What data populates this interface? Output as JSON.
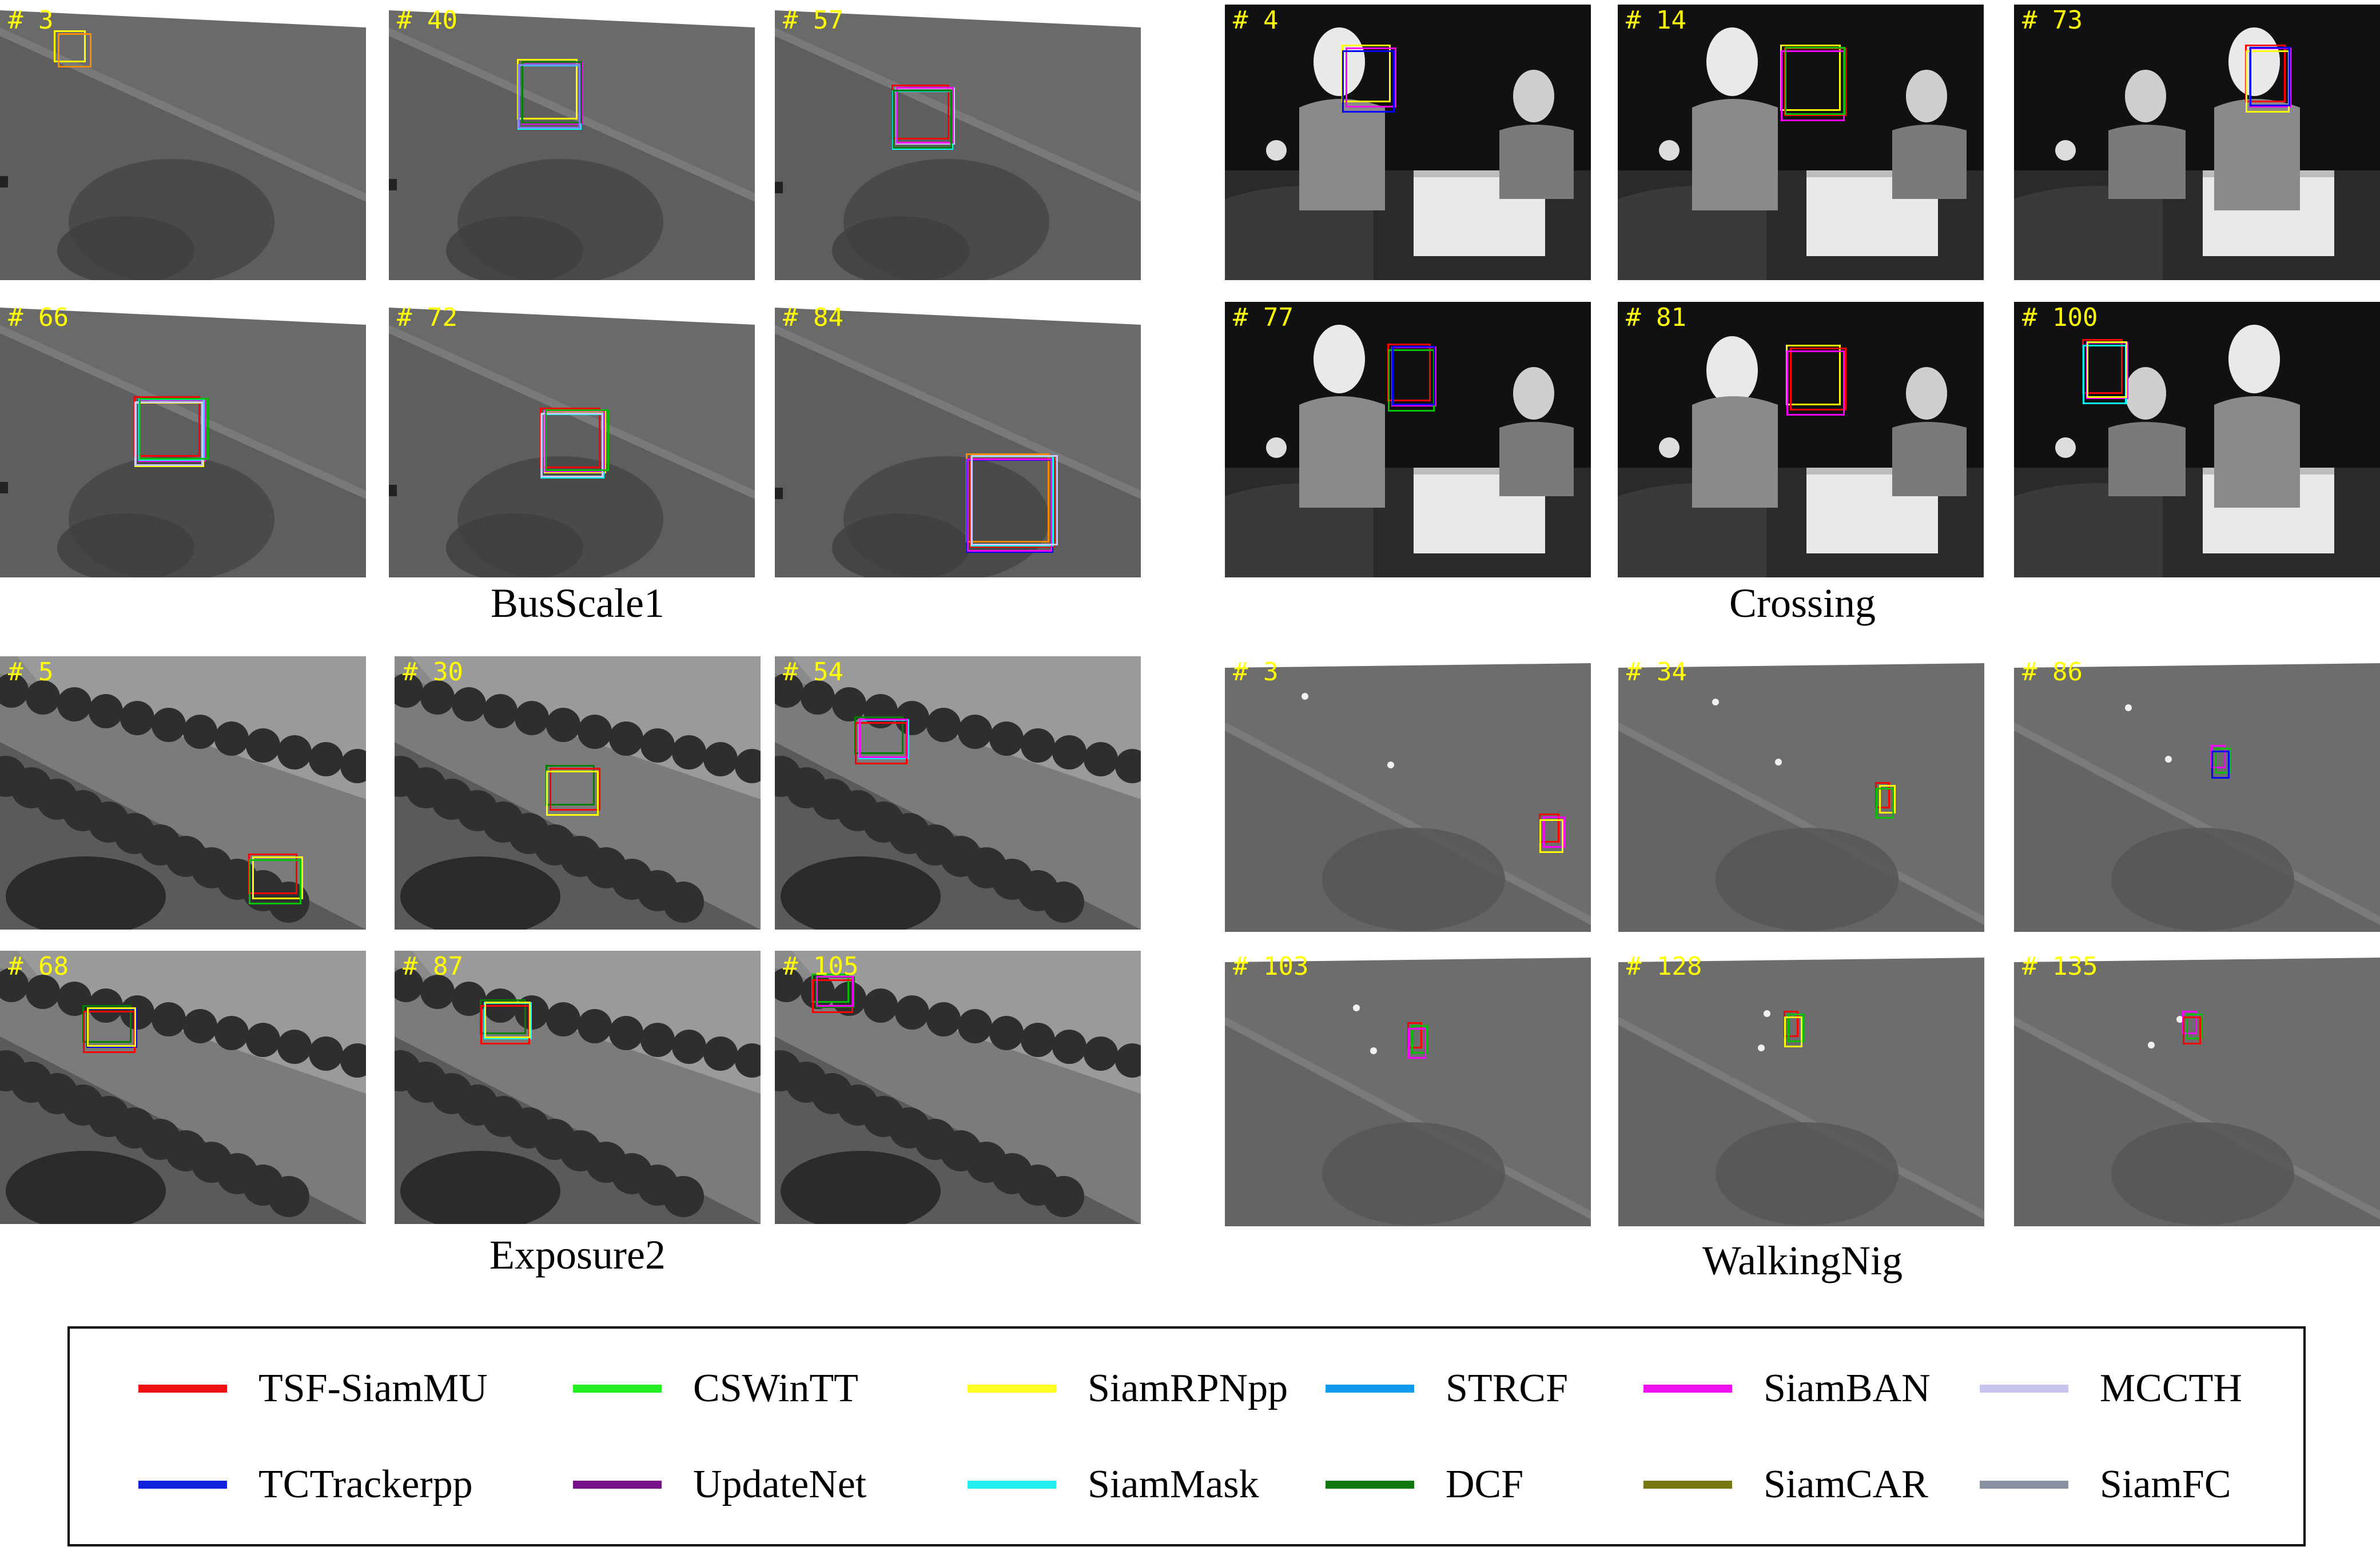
{
  "groups": [
    {
      "caption": "BusScale1",
      "scene": "road",
      "frames": [
        {
          "num": "# 3",
          "boxes": [
            {
              "c": "#ffff00",
              "o": 0.9
            },
            {
              "c": "#ff8c00",
              "o": 0.8
            }
          ]
        },
        {
          "num": "# 40",
          "boxes": [
            {
              "c": "#ffff00"
            },
            {
              "c": "#ff00ff"
            },
            {
              "c": "#00ffff"
            },
            {
              "c": "#008000"
            },
            {
              "c": "#7f7fff"
            }
          ]
        },
        {
          "num": "# 57",
          "boxes": [
            {
              "c": "#ff0000"
            },
            {
              "c": "#c8c8ff"
            },
            {
              "c": "#00ffff"
            },
            {
              "c": "#ff00ff"
            },
            {
              "c": "#008000"
            }
          ]
        },
        {
          "num": "# 66",
          "boxes": [
            {
              "c": "#ff0000"
            },
            {
              "c": "#ff00ff"
            },
            {
              "c": "#ffff00"
            },
            {
              "c": "#00ffff"
            },
            {
              "c": "#c8c8ff"
            },
            {
              "c": "#00c000"
            }
          ]
        },
        {
          "num": "# 72",
          "boxes": [
            {
              "c": "#ff0000"
            },
            {
              "c": "#ffff00"
            },
            {
              "c": "#00ffff"
            },
            {
              "c": "#ff00ff"
            },
            {
              "c": "#c8c8ff"
            },
            {
              "c": "#00c000"
            }
          ]
        },
        {
          "num": "# 84",
          "boxes": [
            {
              "c": "#ff8c00"
            },
            {
              "c": "#ff0000"
            },
            {
              "c": "#0000ff"
            },
            {
              "c": "#00ffff"
            },
            {
              "c": "#ff00ff"
            },
            {
              "c": "#c8c8ff"
            }
          ]
        }
      ]
    },
    {
      "caption": "Crossing",
      "scene": "indoor",
      "frames": [
        {
          "num": "# 4",
          "boxes": [
            {
              "c": "#ffff00"
            },
            {
              "c": "#ff00ff"
            },
            {
              "c": "#0000ff"
            }
          ]
        },
        {
          "num": "# 14",
          "boxes": [
            {
              "c": "#ffff00"
            },
            {
              "c": "#ff0000"
            },
            {
              "c": "#ff00ff"
            },
            {
              "c": "#00c000"
            }
          ]
        },
        {
          "num": "# 73",
          "boxes": [
            {
              "c": "#ff0000"
            },
            {
              "c": "#ff00ff"
            },
            {
              "c": "#ffff00"
            },
            {
              "c": "#0000ff"
            }
          ]
        },
        {
          "num": "# 77",
          "boxes": [
            {
              "c": "#ff0000"
            },
            {
              "c": "#ff00ff"
            },
            {
              "c": "#00c000"
            },
            {
              "c": "#0000ff"
            }
          ]
        },
        {
          "num": "# 81",
          "boxes": [
            {
              "c": "#ffff00"
            },
            {
              "c": "#ff0000"
            },
            {
              "c": "#ff00ff"
            }
          ]
        },
        {
          "num": "# 100",
          "boxes": [
            {
              "c": "#ff0000"
            },
            {
              "c": "#ff00ff"
            },
            {
              "c": "#00ffff"
            },
            {
              "c": "#ffff00"
            }
          ]
        }
      ]
    },
    {
      "caption": "Exposure2",
      "scene": "trees",
      "frames": [
        {
          "num": "# 5",
          "boxes": [
            {
              "c": "#ff0000"
            },
            {
              "c": "#ffff00"
            },
            {
              "c": "#00c000"
            }
          ]
        },
        {
          "num": "# 30",
          "boxes": [
            {
              "c": "#008000"
            },
            {
              "c": "#ff0000"
            },
            {
              "c": "#ffff00"
            }
          ]
        },
        {
          "num": "# 54",
          "boxes": [
            {
              "c": "#008000"
            },
            {
              "c": "#00ffff"
            },
            {
              "c": "#ff0000"
            },
            {
              "c": "#ff00ff"
            }
          ]
        },
        {
          "num": "# 68",
          "boxes": [
            {
              "c": "#008000"
            },
            {
              "c": "#0000ff"
            },
            {
              "c": "#ff0000"
            },
            {
              "c": "#ffff00"
            }
          ]
        },
        {
          "num": "# 87",
          "boxes": [
            {
              "c": "#008000"
            },
            {
              "c": "#00ffff"
            },
            {
              "c": "#ff0000"
            },
            {
              "c": "#ffff00"
            }
          ]
        },
        {
          "num": "# 105",
          "boxes": [
            {
              "c": "#00c000"
            },
            {
              "c": "#008000"
            },
            {
              "c": "#ff0000"
            },
            {
              "c": "#ff00ff"
            }
          ]
        }
      ]
    },
    {
      "caption": "WalkingNig",
      "scene": "night",
      "frames": [
        {
          "num": "# 3",
          "boxes": [
            {
              "c": "#ff0000"
            },
            {
              "c": "#ff00ff"
            },
            {
              "c": "#ffff00"
            }
          ]
        },
        {
          "num": "# 34",
          "boxes": [
            {
              "c": "#ff0000"
            },
            {
              "c": "#ffff00"
            },
            {
              "c": "#00c000"
            }
          ]
        },
        {
          "num": "# 86",
          "boxes": [
            {
              "c": "#ff00ff"
            },
            {
              "c": "#00c000"
            },
            {
              "c": "#0000ff"
            }
          ]
        },
        {
          "num": "# 103",
          "boxes": [
            {
              "c": "#ff0000"
            },
            {
              "c": "#00c000"
            },
            {
              "c": "#ff00ff"
            }
          ]
        },
        {
          "num": "# 128",
          "boxes": [
            {
              "c": "#ff0000"
            },
            {
              "c": "#00c000"
            },
            {
              "c": "#ffff00"
            }
          ]
        },
        {
          "num": "# 135",
          "boxes": [
            {
              "c": "#ff00ff"
            },
            {
              "c": "#00c000"
            },
            {
              "c": "#ff0000"
            }
          ]
        }
      ]
    }
  ],
  "legend": {
    "items": [
      {
        "label": "TSF-SiamMU",
        "color": "#ee1111"
      },
      {
        "label": "CSWinTT",
        "color": "#22ee22"
      },
      {
        "label": "SiamRPNpp",
        "color": "#ffff22"
      },
      {
        "label": "STRCF",
        "color": "#1199ee"
      },
      {
        "label": "SiamBAN",
        "color": "#ee11ee"
      },
      {
        "label": "MCCTH",
        "color": "#c8c4f0"
      },
      {
        "label": "TCTrackerpp",
        "color": "#1122dd"
      },
      {
        "label": "UpdateNet",
        "color": "#771188"
      },
      {
        "label": "SiamMask",
        "color": "#22eeee"
      },
      {
        "label": "DCF",
        "color": "#117711"
      },
      {
        "label": "SiamCAR",
        "color": "#777711"
      },
      {
        "label": "SiamFC",
        "color": "#8891a0"
      }
    ]
  }
}
